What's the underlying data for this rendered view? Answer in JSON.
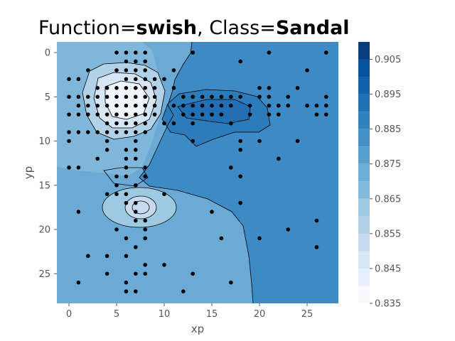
{
  "title": {
    "prefix_label": "Function=",
    "function_name": "swish",
    "separator": ", Class=",
    "class_name": "Sandal"
  },
  "chart_data": {
    "type": "contour",
    "xlabel": "xp",
    "ylabel": "yp",
    "x_ticks": [
      "0",
      "5",
      "10",
      "15",
      "20",
      "25"
    ],
    "y_ticks": [
      "0",
      "5",
      "10",
      "15",
      "20",
      "25"
    ],
    "xlim": [
      -1.3,
      28.3
    ],
    "ylim_inverted": [
      -1.2,
      28.3
    ],
    "colorbar": {
      "min": 0.835,
      "max": 0.91,
      "levels": [
        0.835,
        0.84,
        0.845,
        0.85,
        0.855,
        0.86,
        0.865,
        0.87,
        0.875,
        0.88,
        0.885,
        0.89,
        0.895,
        0.9,
        0.905,
        0.91
      ],
      "tick_labels": [
        "0.835",
        "0.845",
        "0.855",
        "0.865",
        "0.875",
        "0.885",
        "0.895",
        "0.905"
      ],
      "colormap": [
        "#f7fbff",
        "#e5eff9",
        "#d6e6f4",
        "#c6dbef",
        "#b1d2e8",
        "#9ecae1",
        "#82badb",
        "#6baed6",
        "#56a0ce",
        "#4292c6",
        "#3181bd",
        "#2171b5",
        "#1361a9",
        "#08519c",
        "#083d7f"
      ]
    },
    "points": [
      [
        5,
        0
      ],
      [
        6,
        0
      ],
      [
        7,
        0
      ],
      [
        8,
        0
      ],
      [
        13,
        0
      ],
      [
        21,
        0
      ],
      [
        27,
        0
      ],
      [
        6,
        1
      ],
      [
        7,
        1
      ],
      [
        8,
        1
      ],
      [
        18,
        1
      ],
      [
        2,
        2
      ],
      [
        5,
        2
      ],
      [
        6,
        2
      ],
      [
        7,
        2
      ],
      [
        8,
        2
      ],
      [
        11,
        2
      ],
      [
        25,
        2
      ],
      [
        0,
        3
      ],
      [
        1,
        3
      ],
      [
        6,
        3
      ],
      [
        7,
        3
      ],
      [
        8,
        3
      ],
      [
        9,
        3
      ],
      [
        10,
        3
      ],
      [
        3,
        4
      ],
      [
        4,
        4
      ],
      [
        5,
        4
      ],
      [
        6,
        4
      ],
      [
        7,
        4
      ],
      [
        8,
        4
      ],
      [
        9,
        4
      ],
      [
        11,
        4
      ],
      [
        20,
        4
      ],
      [
        21,
        4
      ],
      [
        24,
        4
      ],
      [
        0,
        5
      ],
      [
        1,
        5
      ],
      [
        2,
        5
      ],
      [
        3,
        5
      ],
      [
        4,
        5
      ],
      [
        5,
        5
      ],
      [
        6,
        5
      ],
      [
        7,
        5
      ],
      [
        8,
        5
      ],
      [
        9,
        5
      ],
      [
        12,
        5
      ],
      [
        13,
        5
      ],
      [
        14,
        5
      ],
      [
        15,
        5
      ],
      [
        16,
        5
      ],
      [
        17,
        5
      ],
      [
        18,
        5
      ],
      [
        20,
        5
      ],
      [
        21,
        5
      ],
      [
        23,
        5
      ],
      [
        27,
        5
      ],
      [
        1,
        6
      ],
      [
        2,
        6
      ],
      [
        3,
        6
      ],
      [
        4,
        6
      ],
      [
        5,
        6
      ],
      [
        6,
        6
      ],
      [
        7,
        6
      ],
      [
        8,
        6
      ],
      [
        9,
        6
      ],
      [
        11,
        6
      ],
      [
        12,
        6
      ],
      [
        13,
        6
      ],
      [
        14,
        6
      ],
      [
        15,
        6
      ],
      [
        16,
        6
      ],
      [
        17,
        6
      ],
      [
        19,
        6
      ],
      [
        21,
        6
      ],
      [
        22,
        6
      ],
      [
        23,
        6
      ],
      [
        25,
        6
      ],
      [
        26,
        6
      ],
      [
        27,
        6
      ],
      [
        0,
        7
      ],
      [
        1,
        7
      ],
      [
        2,
        7
      ],
      [
        3,
        7
      ],
      [
        4,
        7
      ],
      [
        5,
        7
      ],
      [
        6,
        7
      ],
      [
        7,
        7
      ],
      [
        8,
        7
      ],
      [
        9,
        7
      ],
      [
        12,
        7
      ],
      [
        13,
        7
      ],
      [
        14,
        7
      ],
      [
        15,
        7
      ],
      [
        16,
        7
      ],
      [
        19,
        7
      ],
      [
        21,
        7
      ],
      [
        22,
        7
      ],
      [
        26,
        7
      ],
      [
        27,
        7
      ],
      [
        4,
        8
      ],
      [
        5,
        8
      ],
      [
        6,
        8
      ],
      [
        7,
        8
      ],
      [
        8,
        8
      ],
      [
        10,
        8
      ],
      [
        11,
        8
      ],
      [
        13,
        8
      ],
      [
        17,
        8
      ],
      [
        0,
        9
      ],
      [
        1,
        9
      ],
      [
        2,
        9
      ],
      [
        3,
        9
      ],
      [
        4,
        9
      ],
      [
        5,
        9
      ],
      [
        6,
        9
      ],
      [
        7,
        9
      ],
      [
        8,
        9
      ],
      [
        0,
        10
      ],
      [
        4,
        10
      ],
      [
        7,
        10
      ],
      [
        13,
        10
      ],
      [
        18,
        10
      ],
      [
        20,
        10
      ],
      [
        24,
        10
      ],
      [
        4,
        11
      ],
      [
        6,
        11
      ],
      [
        7,
        11
      ],
      [
        18,
        11
      ],
      [
        3,
        12
      ],
      [
        6,
        12
      ],
      [
        7,
        12
      ],
      [
        22,
        12
      ],
      [
        0,
        13
      ],
      [
        1,
        13
      ],
      [
        6,
        13
      ],
      [
        8,
        13
      ],
      [
        17,
        13
      ],
      [
        5,
        14
      ],
      [
        6,
        14
      ],
      [
        8,
        14
      ],
      [
        18,
        14
      ],
      [
        5,
        15
      ],
      [
        7,
        15
      ],
      [
        4,
        16
      ],
      [
        5,
        16
      ],
      [
        6,
        16
      ],
      [
        10,
        16
      ],
      [
        6,
        17
      ],
      [
        7,
        17
      ],
      [
        18,
        17
      ],
      [
        1,
        18
      ],
      [
        7,
        18
      ],
      [
        15,
        18
      ],
      [
        7,
        19
      ],
      [
        8,
        19
      ],
      [
        26,
        19
      ],
      [
        5,
        20
      ],
      [
        8,
        20
      ],
      [
        23,
        20
      ],
      [
        6,
        21
      ],
      [
        8,
        21
      ],
      [
        16,
        21
      ],
      [
        20,
        21
      ],
      [
        7,
        22
      ],
      [
        26,
        22
      ],
      [
        2,
        23
      ],
      [
        4,
        23
      ],
      [
        6,
        23
      ],
      [
        8,
        24
      ],
      [
        10,
        24
      ],
      [
        4,
        25
      ],
      [
        7,
        25
      ],
      [
        8,
        25
      ],
      [
        13,
        25
      ],
      [
        1,
        26
      ],
      [
        6,
        26
      ],
      [
        17,
        26
      ],
      [
        6,
        27
      ],
      [
        7,
        27
      ],
      [
        12,
        27
      ]
    ]
  }
}
